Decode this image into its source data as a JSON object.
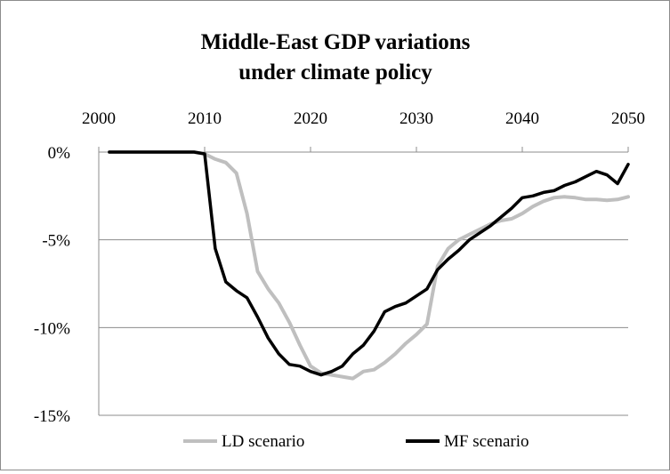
{
  "chart_data": {
    "type": "line",
    "title": [
      "Middle-East GDP variations",
      "under climate policy"
    ],
    "x_ticks": [
      "2000",
      "2010",
      "2020",
      "2030",
      "2040",
      "2050"
    ],
    "y_ticks": [
      "0%",
      "-5%",
      "-10%",
      "-15%"
    ],
    "xlim": [
      2000,
      2050
    ],
    "ylim": [
      -15,
      0
    ],
    "grid": "horizontal",
    "legend_position": "bottom",
    "series": [
      {
        "name": "LD scenario",
        "color": "#bfbfbf",
        "x": [
          2001,
          2005,
          2009,
          2010,
          2011,
          2012,
          2013,
          2014,
          2015,
          2016,
          2017,
          2018,
          2019,
          2020,
          2021,
          2022,
          2023,
          2024,
          2025,
          2026,
          2027,
          2028,
          2029,
          2030,
          2031,
          2032,
          2033,
          2034,
          2035,
          2036,
          2037,
          2038,
          2039,
          2040,
          2041,
          2042,
          2043,
          2044,
          2045,
          2046,
          2047,
          2048,
          2049,
          2050
        ],
        "values": [
          0,
          0,
          0,
          -0.1,
          -0.4,
          -0.6,
          -1.2,
          -3.5,
          -6.8,
          -7.8,
          -8.6,
          -9.7,
          -11,
          -12.2,
          -12.6,
          -12.7,
          -12.8,
          -12.9,
          -12.5,
          -12.4,
          -12,
          -11.5,
          -10.9,
          -10.4,
          -9.8,
          -6.5,
          -5.5,
          -5,
          -4.7,
          -4.4,
          -4.1,
          -3.9,
          -3.8,
          -3.5,
          -3.1,
          -2.8,
          -2.6,
          -2.55,
          -2.6,
          -2.7,
          -2.7,
          -2.75,
          -2.7,
          -2.55
        ]
      },
      {
        "name": "MF scenario",
        "color": "#000000",
        "x": [
          2001,
          2005,
          2009,
          2010,
          2011,
          2012,
          2013,
          2014,
          2015,
          2016,
          2017,
          2018,
          2019,
          2020,
          2021,
          2022,
          2023,
          2024,
          2025,
          2026,
          2027,
          2028,
          2029,
          2030,
          2031,
          2032,
          2033,
          2034,
          2035,
          2036,
          2037,
          2038,
          2039,
          2040,
          2041,
          2042,
          2043,
          2044,
          2045,
          2046,
          2047,
          2048,
          2049,
          2050
        ],
        "values": [
          0,
          0,
          0,
          -0.1,
          -5.5,
          -7.4,
          -7.9,
          -8.3,
          -9.4,
          -10.6,
          -11.5,
          -12.1,
          -12.2,
          -12.5,
          -12.7,
          -12.5,
          -12.2,
          -11.5,
          -11,
          -10.2,
          -9.1,
          -8.8,
          -8.6,
          -8.2,
          -7.8,
          -6.7,
          -6.1,
          -5.6,
          -5,
          -4.6,
          -4.2,
          -3.7,
          -3.2,
          -2.6,
          -2.5,
          -2.3,
          -2.2,
          -1.9,
          -1.7,
          -1.4,
          -1.1,
          -1.3,
          -1.8,
          -0.7
        ]
      }
    ]
  }
}
